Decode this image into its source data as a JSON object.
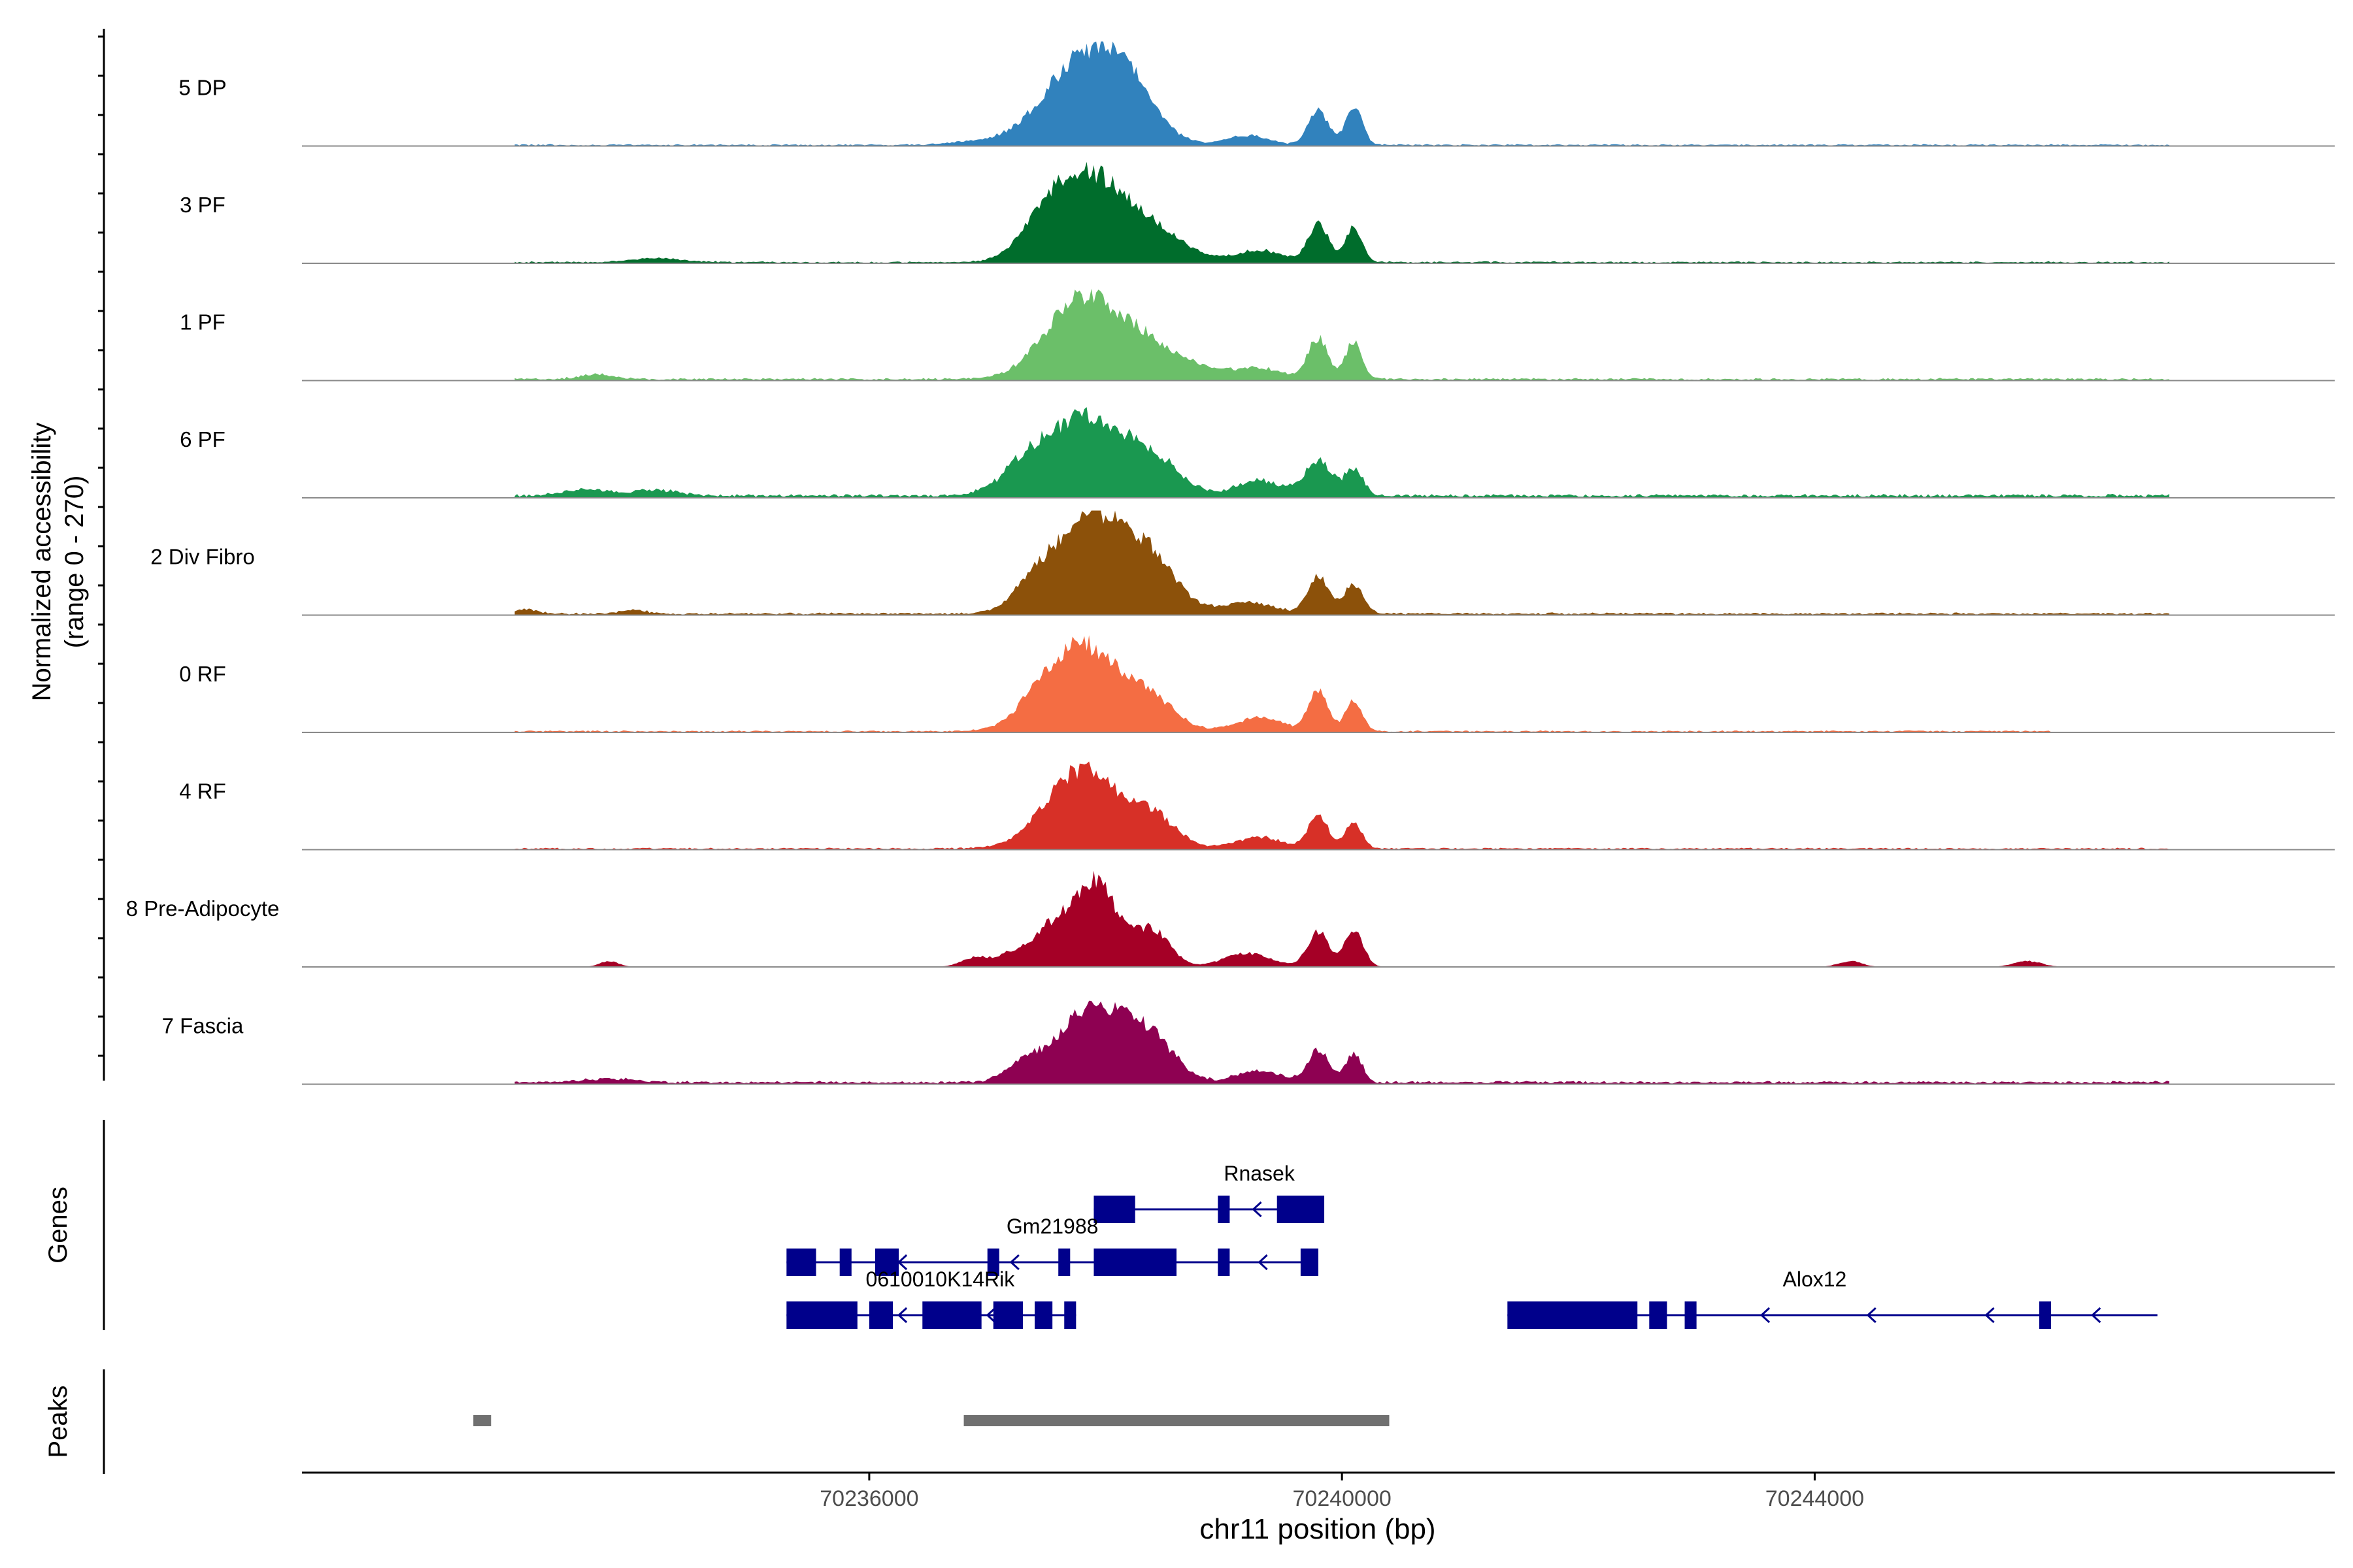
{
  "chart_data": {
    "type": "area",
    "title": "",
    "ylabel_line1": "Normalized accessibility",
    "ylabel_line2": "(range 0 - 270)",
    "xlabel": "chr11 position (bp)",
    "xlim": [
      70231200,
      70248400
    ],
    "y_range": [
      0,
      270
    ],
    "x_ticks": [
      70236000,
      70240000,
      70244000
    ],
    "x_tick_labels": [
      "70236000",
      "70240000",
      "70244000"
    ],
    "tracks": [
      {
        "name": "5 DP",
        "color": "#3182BD",
        "peaks": [
          [
            70237800,
            215,
            330
          ],
          [
            70238200,
            110,
            230
          ],
          [
            70239800,
            95,
            80
          ],
          [
            70240100,
            100,
            70
          ],
          [
            70239200,
            25,
            180
          ],
          [
            70236900,
            8,
            200
          ]
        ],
        "baseline": 3,
        "start": 70233000,
        "end": 70247000
      },
      {
        "name": "3 PF",
        "color": "#006D2C",
        "peaks": [
          [
            70237900,
            215,
            320
          ],
          [
            70237500,
            80,
            200
          ],
          [
            70238500,
            50,
            250
          ],
          [
            70239800,
            100,
            85
          ],
          [
            70240100,
            90,
            70
          ],
          [
            70239300,
            30,
            200
          ],
          [
            70234200,
            10,
            220
          ]
        ],
        "baseline": 3,
        "start": 70233000,
        "end": 70247000
      },
      {
        "name": "1 PF",
        "color": "#6BBF69",
        "peaks": [
          [
            70237800,
            210,
            300
          ],
          [
            70238300,
            70,
            220
          ],
          [
            70238700,
            35,
            250
          ],
          [
            70239800,
            105,
            85
          ],
          [
            70240100,
            95,
            70
          ],
          [
            70239300,
            28,
            200
          ],
          [
            70233700,
            12,
            150
          ]
        ],
        "baseline": 4,
        "start": 70233000,
        "end": 70247000
      },
      {
        "name": "6 PF",
        "color": "#1A9850",
        "peaks": [
          [
            70237800,
            200,
            330
          ],
          [
            70238400,
            80,
            230
          ],
          [
            70237300,
            45,
            200
          ],
          [
            70239800,
            90,
            110
          ],
          [
            70240100,
            65,
            80
          ],
          [
            70239300,
            40,
            200
          ],
          [
            70233600,
            15,
            200
          ],
          [
            70234200,
            15,
            200
          ]
        ],
        "baseline": 6,
        "start": 70233000,
        "end": 70247000
      },
      {
        "name": "2 Div Fibro",
        "color": "#8C510A",
        "peaks": [
          [
            70237900,
            250,
            300
          ],
          [
            70238400,
            110,
            220
          ],
          [
            70237400,
            60,
            180
          ],
          [
            70239800,
            95,
            90
          ],
          [
            70240100,
            75,
            80
          ],
          [
            70239200,
            30,
            220
          ],
          [
            70233100,
            10,
            100
          ],
          [
            70234000,
            10,
            100
          ]
        ],
        "baseline": 4,
        "start": 70233000,
        "end": 70247000
      },
      {
        "name": "0 RF",
        "color": "#F46D43",
        "peaks": [
          [
            70237800,
            225,
            310
          ],
          [
            70238400,
            70,
            200
          ],
          [
            70239800,
            105,
            80
          ],
          [
            70240100,
            80,
            70
          ],
          [
            70239300,
            35,
            200
          ],
          [
            70237400,
            30,
            150
          ]
        ],
        "baseline": 3,
        "start": 70233000,
        "end": 70246000
      },
      {
        "name": "4 RF",
        "color": "#D73027",
        "peaks": [
          [
            70237800,
            205,
            300
          ],
          [
            70238400,
            75,
            200
          ],
          [
            70239800,
            90,
            80
          ],
          [
            70240100,
            70,
            70
          ],
          [
            70239300,
            30,
            200
          ]
        ],
        "baseline": 3,
        "start": 70233000,
        "end": 70247000
      },
      {
        "name": "8 Pre-Adipocyte",
        "color": "#A50026",
        "peaks": [
          [
            70237900,
            220,
            200
          ],
          [
            70237500,
            80,
            150
          ],
          [
            70238400,
            90,
            150
          ],
          [
            70236900,
            25,
            120
          ],
          [
            70237200,
            30,
            120
          ],
          [
            70239800,
            90,
            90
          ],
          [
            70240100,
            95,
            80
          ],
          [
            70239200,
            35,
            200
          ],
          [
            70233800,
            15,
            80
          ],
          [
            70244300,
            15,
            100
          ],
          [
            70245800,
            15,
            120
          ]
        ],
        "baseline": 0,
        "start": 70233000,
        "end": 70247000
      },
      {
        "name": "7 Fascia",
        "color": "#8E0152",
        "peaks": [
          [
            70237900,
            200,
            290
          ],
          [
            70238400,
            90,
            200
          ],
          [
            70237300,
            45,
            150
          ],
          [
            70239800,
            80,
            90
          ],
          [
            70240100,
            75,
            70
          ],
          [
            70239300,
            28,
            200
          ],
          [
            70233800,
            10,
            200
          ]
        ],
        "baseline": 5,
        "start": 70233000,
        "end": 70247000
      }
    ],
    "genes_label": "Genes",
    "genes": [
      {
        "name": "Rnasek",
        "row": 0,
        "label_x": 70239300,
        "start": 70237900,
        "end": 70239800,
        "exons": [
          [
            70237900,
            70238250
          ],
          [
            70238950,
            70239050
          ],
          [
            70239450,
            70239850
          ]
        ],
        "arrows": [
          70239250
        ]
      },
      {
        "name": "Gm21988",
        "row": 1,
        "label_x": 70237550,
        "start": 70235300,
        "end": 70239800,
        "exons": [
          [
            70235300,
            70235550
          ],
          [
            70235750,
            70235850
          ],
          [
            70236050,
            70236250
          ],
          [
            70237000,
            70237100
          ],
          [
            70237600,
            70237700
          ],
          [
            70237900,
            70238600
          ],
          [
            70238950,
            70239050
          ],
          [
            70239650,
            70239800
          ]
        ],
        "arrows": [
          70236250,
          70237200,
          70238200,
          70239300
        ]
      },
      {
        "name": "0610010K14Rik",
        "row": 2,
        "label_x": 70236600,
        "start": 70235300,
        "end": 70237750,
        "exons": [
          [
            70235300,
            70235900
          ],
          [
            70236000,
            70236200
          ],
          [
            70236450,
            70236950
          ],
          [
            70237050,
            70237300
          ],
          [
            70237400,
            70237550
          ],
          [
            70237650,
            70237750
          ]
        ],
        "arrows": [
          70236250,
          70237000
        ]
      },
      {
        "name": "Alox12",
        "row": 2,
        "label_x": 70244000,
        "start": 70241400,
        "end": 70246900,
        "exons": [
          [
            70241400,
            70242500
          ],
          [
            70242600,
            70242750
          ],
          [
            70242900,
            70243000
          ],
          [
            70245900,
            70246000
          ]
        ],
        "arrows": [
          70243550,
          70244450,
          70245450,
          70246350
        ]
      }
    ],
    "peaks_label": "Peaks",
    "peak_regions": [
      [
        70232650,
        70232800
      ],
      [
        70236800,
        70240400
      ]
    ],
    "gene_color": "#00008B",
    "peak_color": "#707070"
  }
}
